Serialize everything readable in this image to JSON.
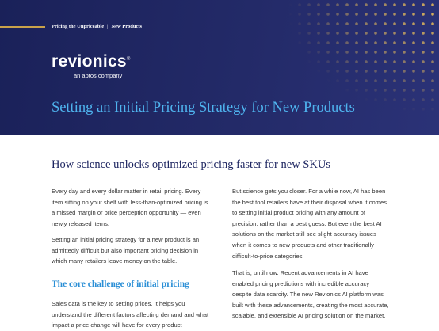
{
  "header": {
    "breadcrumb": [
      "Pricing the Unpriceable",
      "New Products"
    ],
    "logo": "revionics",
    "tagline": "an aptos company",
    "title": "Setting an Initial Pricing Strategy for New Products"
  },
  "subtitle": "How science unlocks optimized pricing faster for new SKUs",
  "left_column": {
    "paragraphs": [
      "Every day and every dollar matter in retail pricing. Every item sitting on your shelf with less-than-optimized pricing is a missed margin or price perception opportunity — even newly released items.",
      "Setting an initial pricing strategy for a new product is an admittedly difficult but also important pricing decision in which many retailers leave money on the table."
    ],
    "section_heading": "The core challenge of initial pricing",
    "section_paragraph": "Sales data is the key to setting prices. It helps you understand the different factors affecting demand and what impact a price change will have for every product"
  },
  "right_column": {
    "paragraphs": [
      "But science gets you closer. For a while now, AI has been the best tool retailers have at their disposal when it comes to setting initial product pricing with any amount of precision, rather than a best guess. But even the best AI solutions on the market still see slight accuracy issues when it comes to new products and other traditionally difficult-to-price categories.",
      "That is, until now. Recent advancements in AI have enabled pricing predictions with incredible accuracy despite data scarcity. The new Revionics AI platform was built with these advancements, creating the most accurate, scalable, and extensible AI pricing solution on the market."
    ]
  }
}
